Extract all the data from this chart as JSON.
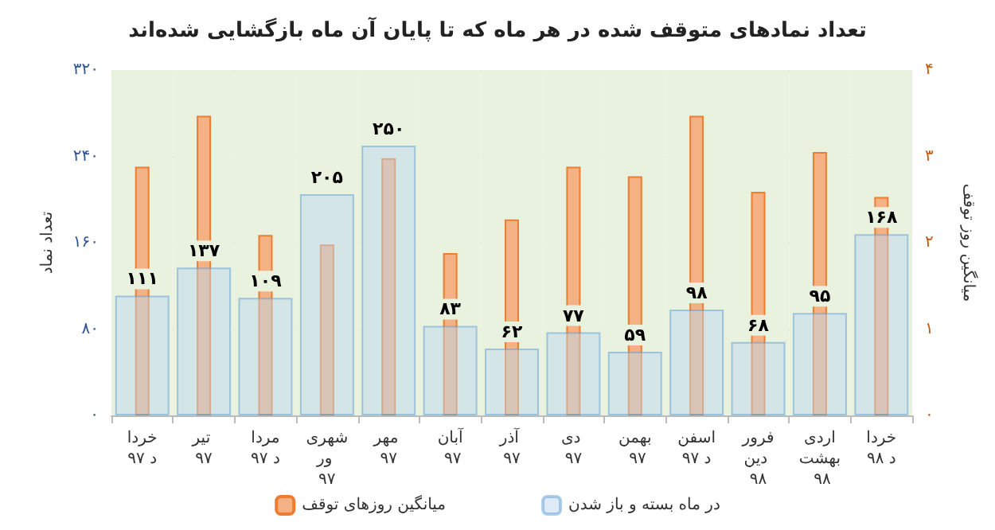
{
  "chart_data": {
    "type": "bar",
    "title": "تعداد نمادهای متوقف شده در هر ماه که تا پایان آن ماه بازگشایی شده‌اند",
    "categories": [
      "خرداد ۹۷",
      "تیر ۹۷",
      "مرداد ۹۷",
      "شهریور ۹۷",
      "مهر ۹۷",
      "آبان ۹۷",
      "آذر ۹۷",
      "دی ۹۷",
      "بهمن ۹۷",
      "اسفند ۹۷",
      "فروردین ۹۸",
      "اردیبهشت ۹۸",
      "خرداد ۹۸"
    ],
    "series": [
      {
        "name": "میانگین روزهای توقف",
        "color": "#f4b183",
        "axis": "y2",
        "values": [
          2.88,
          3.47,
          2.09,
          1.98,
          2.98,
          1.88,
          2.27,
          2.88,
          2.77,
          3.47,
          2.59,
          3.05,
          2.53
        ]
      },
      {
        "name": "در ماه بسته و باز شدن",
        "color": "#bdd7ee",
        "values": [
          111,
          137,
          109,
          205,
          250,
          83,
          62,
          77,
          59,
          98,
          68,
          95,
          168
        ],
        "value_labels": [
          "۱۱۱",
          "۱۳۷",
          "۱۰۹",
          "۲۰۵",
          "۲۵۰",
          "۸۳",
          "۶۲",
          "۷۷",
          "۵۹",
          "۹۸",
          "۶۸",
          "۹۵",
          "۱۶۸"
        ]
      }
    ],
    "ylabel": "تعداد نماد",
    "y2label": "میانگین روز توقف",
    "ylim": [
      0,
      320
    ],
    "yticks": [
      {
        "value": 0,
        "label": "۰"
      },
      {
        "value": 80,
        "label": "۸۰"
      },
      {
        "value": 160,
        "label": "۱۶۰"
      },
      {
        "value": 240,
        "label": "۲۴۰"
      },
      {
        "value": 320,
        "label": "۳۲۰"
      }
    ],
    "y2lim": [
      0,
      4
    ],
    "y2ticks": [
      {
        "value": 0,
        "label": "۰"
      },
      {
        "value": 1,
        "label": "۱"
      },
      {
        "value": 2,
        "label": "۲"
      },
      {
        "value": 3,
        "label": "۳"
      },
      {
        "value": 4,
        "label": "۴"
      }
    ],
    "grid": "y",
    "legend": "bottom"
  }
}
